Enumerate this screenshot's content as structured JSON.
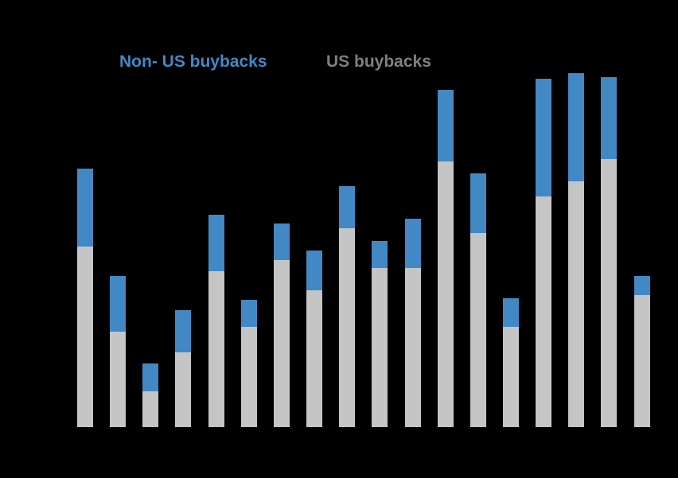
{
  "page": {
    "background_color": "#000000"
  },
  "legend": {
    "position": "top",
    "items": [
      {
        "label": "Non- US buybacks",
        "color": "#4288c5"
      },
      {
        "label": "US buybacks",
        "color": "#7f7f7f"
      }
    ]
  },
  "chart_data": {
    "type": "bar",
    "stacked": true,
    "orientation": "vertical",
    "title": "",
    "xlabel": "",
    "ylabel": "",
    "axis_tick_labels_visible": false,
    "x_tick_labels": [],
    "num_bars": 18,
    "value_units": "estimated pixel heights (no visible axis scale)",
    "ylim": [
      0,
      480
    ],
    "legend_position": "top",
    "grid": false,
    "series": [
      {
        "name": "US buybacks",
        "color": "#c5c5c5",
        "values": [
          227,
          120,
          45,
          94,
          196,
          126,
          210,
          172,
          250,
          200,
          200,
          334,
          244,
          126,
          290,
          309,
          337,
          166
        ]
      },
      {
        "name": "Non- US buybacks",
        "color": "#4288c5",
        "values": [
          98,
          70,
          35,
          53,
          71,
          34,
          46,
          50,
          53,
          34,
          62,
          90,
          75,
          36,
          148,
          136,
          103,
          24
        ]
      }
    ]
  }
}
